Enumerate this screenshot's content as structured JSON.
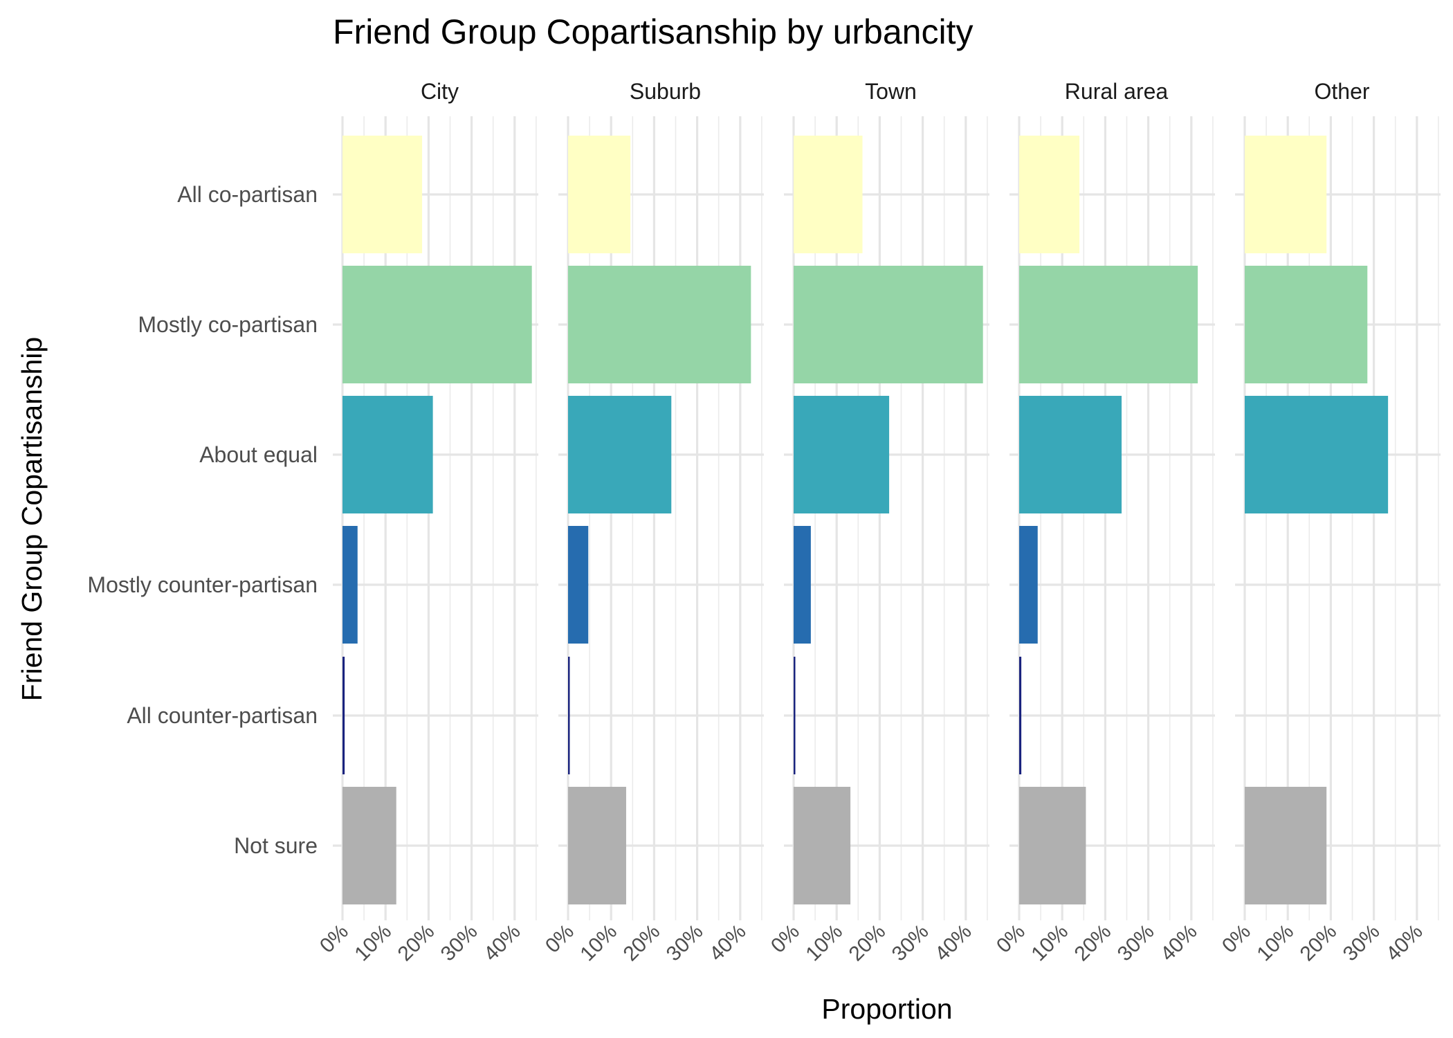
{
  "chart_data": {
    "type": "bar",
    "orientation": "horizontal",
    "faceted": true,
    "title": "Friend Group Copartisanship by urbancity",
    "xlabel": "Proportion",
    "ylabel": "Friend Group Copartisanship",
    "xlim": [
      0,
      0.45
    ],
    "x_ticks": [
      "0%",
      "10%",
      "20%",
      "30%",
      "40%"
    ],
    "x_tick_values": [
      0,
      0.1,
      0.2,
      0.3,
      0.4
    ],
    "grid": true,
    "legend": "none",
    "categories": [
      "All co-partisan",
      "Mostly co-partisan",
      "About equal",
      "Mostly counter-partisan",
      "All counter-partisan",
      "Not sure"
    ],
    "colors": [
      "#ffffc4",
      "#95d5a7",
      "#39a8b9",
      "#266caf",
      "#1a237e",
      "#b0b0b0"
    ],
    "facets": [
      {
        "name": "City",
        "values": [
          0.185,
          0.44,
          0.21,
          0.035,
          0.005,
          0.125
        ]
      },
      {
        "name": "Suburb",
        "values": [
          0.145,
          0.425,
          0.24,
          0.047,
          0.004,
          0.135
        ]
      },
      {
        "name": "Town",
        "values": [
          0.16,
          0.44,
          0.222,
          0.04,
          0.004,
          0.132
        ]
      },
      {
        "name": "Rural area",
        "values": [
          0.14,
          0.415,
          0.238,
          0.043,
          0.005,
          0.155
        ]
      },
      {
        "name": "Other",
        "values": [
          0.19,
          0.285,
          0.333,
          0,
          0,
          0.19
        ]
      }
    ]
  }
}
